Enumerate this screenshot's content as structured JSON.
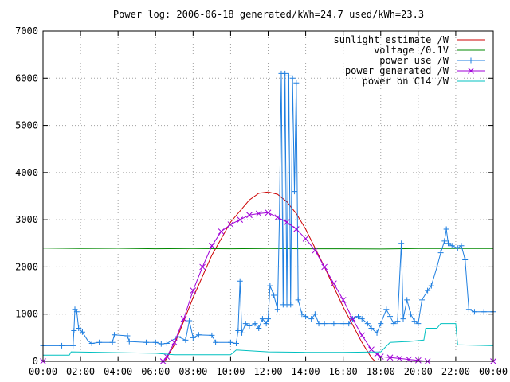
{
  "chart_data": {
    "type": "line",
    "title": "Power log: 2006-06-18 generated/kWh=24.7 used/kWh=23.3",
    "xlabel": "",
    "ylabel": "",
    "x_ticks": [
      "00:00",
      "02:00",
      "04:00",
      "06:00",
      "08:00",
      "10:00",
      "12:00",
      "14:00",
      "16:00",
      "18:00",
      "20:00",
      "22:00",
      "00:00"
    ],
    "xlim_hours": [
      0,
      24
    ],
    "y_ticks": [
      0,
      1000,
      2000,
      3000,
      4000,
      5000,
      6000,
      7000
    ],
    "ylim": [
      0,
      7000
    ],
    "grid": true,
    "legend_position": "top-right",
    "series": [
      {
        "name": "sunlight estimate /W",
        "color": "#cc0000",
        "style": "line",
        "points": [
          [
            6.5,
            0
          ],
          [
            7,
            350
          ],
          [
            8,
            1350
          ],
          [
            9,
            2250
          ],
          [
            10,
            2950
          ],
          [
            11,
            3420
          ],
          [
            11.5,
            3560
          ],
          [
            12,
            3590
          ],
          [
            12.5,
            3540
          ],
          [
            13,
            3380
          ],
          [
            13.5,
            3130
          ],
          [
            14,
            2800
          ],
          [
            15,
            2000
          ],
          [
            16,
            1150
          ],
          [
            17,
            400
          ],
          [
            17.5,
            80
          ],
          [
            17.7,
            0
          ]
        ]
      },
      {
        "name": "voltage /0.1V",
        "color": "#008800",
        "style": "line",
        "points": [
          [
            0,
            2400
          ],
          [
            2,
            2390
          ],
          [
            4,
            2395
          ],
          [
            6,
            2385
          ],
          [
            8,
            2390
          ],
          [
            10,
            2385
          ],
          [
            12,
            2390
          ],
          [
            14,
            2385
          ],
          [
            16,
            2385
          ],
          [
            18,
            2380
          ],
          [
            20,
            2390
          ],
          [
            22,
            2390
          ],
          [
            24,
            2390
          ]
        ]
      },
      {
        "name": "power use /W",
        "color": "#1f7fe0",
        "style": "linespoints",
        "points": [
          [
            0,
            330
          ],
          [
            1,
            330
          ],
          [
            1.6,
            330
          ],
          [
            1.65,
            650
          ],
          [
            1.7,
            1100
          ],
          [
            1.8,
            1050
          ],
          [
            1.9,
            700
          ],
          [
            2.1,
            620
          ],
          [
            2.4,
            430
          ],
          [
            2.6,
            380
          ],
          [
            3,
            400
          ],
          [
            3.7,
            400
          ],
          [
            3.8,
            560
          ],
          [
            4.5,
            540
          ],
          [
            4.6,
            420
          ],
          [
            5.5,
            400
          ],
          [
            6,
            400
          ],
          [
            6.3,
            370
          ],
          [
            6.6,
            380
          ],
          [
            7.2,
            520
          ],
          [
            7.6,
            450
          ],
          [
            7.8,
            860
          ],
          [
            8,
            500
          ],
          [
            8.3,
            560
          ],
          [
            9,
            550
          ],
          [
            9.2,
            400
          ],
          [
            10,
            400
          ],
          [
            10.3,
            380
          ],
          [
            10.4,
            650
          ],
          [
            10.5,
            1700
          ],
          [
            10.6,
            600
          ],
          [
            10.8,
            800
          ],
          [
            11,
            750
          ],
          [
            11.3,
            800
          ],
          [
            11.5,
            700
          ],
          [
            11.7,
            900
          ],
          [
            11.9,
            800
          ],
          [
            12,
            900
          ],
          [
            12.1,
            1600
          ],
          [
            12.3,
            1400
          ],
          [
            12.5,
            1100
          ],
          [
            12.6,
            3000
          ],
          [
            12.7,
            6100
          ],
          [
            12.8,
            1200
          ],
          [
            12.9,
            6100
          ],
          [
            13,
            1200
          ],
          [
            13.1,
            6050
          ],
          [
            13.2,
            1200
          ],
          [
            13.3,
            6000
          ],
          [
            13.4,
            3600
          ],
          [
            13.5,
            5900
          ],
          [
            13.6,
            1300
          ],
          [
            13.8,
            1000
          ],
          [
            14,
            950
          ],
          [
            14.3,
            900
          ],
          [
            14.5,
            1000
          ],
          [
            14.7,
            800
          ],
          [
            15,
            800
          ],
          [
            15.5,
            800
          ],
          [
            16,
            800
          ],
          [
            16.3,
            800
          ],
          [
            16.5,
            900
          ],
          [
            16.8,
            950
          ],
          [
            17,
            900
          ],
          [
            17.3,
            800
          ],
          [
            17.5,
            700
          ],
          [
            17.8,
            600
          ],
          [
            18,
            800
          ],
          [
            18.3,
            1100
          ],
          [
            18.5,
            950
          ],
          [
            18.7,
            800
          ],
          [
            18.9,
            850
          ],
          [
            19.1,
            2500
          ],
          [
            19.2,
            900
          ],
          [
            19.4,
            1300
          ],
          [
            19.6,
            1000
          ],
          [
            19.8,
            850
          ],
          [
            20,
            800
          ],
          [
            20.2,
            1300
          ],
          [
            20.5,
            1500
          ],
          [
            20.7,
            1600
          ],
          [
            21,
            2000
          ],
          [
            21.2,
            2300
          ],
          [
            21.4,
            2550
          ],
          [
            21.5,
            2800
          ],
          [
            21.6,
            2500
          ],
          [
            21.8,
            2450
          ],
          [
            22.1,
            2400
          ],
          [
            22.3,
            2450
          ],
          [
            22.5,
            2150
          ],
          [
            22.7,
            1100
          ],
          [
            23,
            1050
          ],
          [
            23.5,
            1050
          ],
          [
            24,
            1050
          ]
        ]
      },
      {
        "name": "power generated /W",
        "color": "#a000d8",
        "style": "linespoints",
        "points": [
          [
            0,
            0
          ],
          [
            6.4,
            0
          ],
          [
            6.6,
            100
          ],
          [
            7,
            400
          ],
          [
            7.5,
            900
          ],
          [
            8,
            1500
          ],
          [
            8.5,
            2000
          ],
          [
            9,
            2450
          ],
          [
            9.5,
            2750
          ],
          [
            10,
            2900
          ],
          [
            10.5,
            3000
          ],
          [
            11,
            3100
          ],
          [
            11.5,
            3130
          ],
          [
            12,
            3150
          ],
          [
            12.5,
            3050
          ],
          [
            13,
            2950
          ],
          [
            13.5,
            2800
          ],
          [
            14,
            2600
          ],
          [
            14.5,
            2350
          ],
          [
            15,
            2000
          ],
          [
            15.5,
            1650
          ],
          [
            16,
            1300
          ],
          [
            16.5,
            900
          ],
          [
            17,
            550
          ],
          [
            17.5,
            250
          ],
          [
            17.8,
            150
          ],
          [
            18,
            100
          ],
          [
            18.5,
            80
          ],
          [
            19,
            60
          ],
          [
            19.5,
            40
          ],
          [
            20,
            20
          ],
          [
            20.5,
            0
          ],
          [
            24,
            0
          ]
        ]
      },
      {
        "name": "power on C14 /W",
        "color": "#00c0c0",
        "style": "line",
        "points": [
          [
            0,
            130
          ],
          [
            1.4,
            130
          ],
          [
            1.5,
            200
          ],
          [
            6,
            170
          ],
          [
            7,
            140
          ],
          [
            10,
            140
          ],
          [
            10.3,
            240
          ],
          [
            12,
            200
          ],
          [
            14,
            190
          ],
          [
            16,
            190
          ],
          [
            18,
            200
          ],
          [
            18.5,
            400
          ],
          [
            19.5,
            420
          ],
          [
            20.3,
            450
          ],
          [
            20.4,
            700
          ],
          [
            21,
            700
          ],
          [
            21.2,
            800
          ],
          [
            22,
            800
          ],
          [
            22.1,
            350
          ],
          [
            24,
            330
          ]
        ]
      }
    ]
  }
}
